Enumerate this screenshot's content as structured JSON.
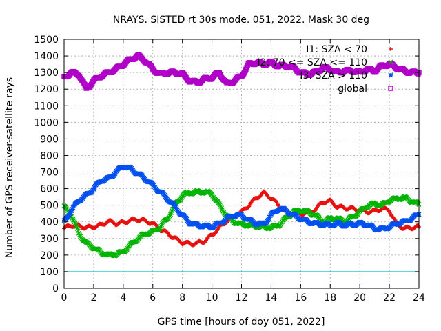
{
  "chart_data": {
    "type": "scatter",
    "title": "NRAYS. SISTED rt 30s mode. 051, 2022. Mask 30 deg",
    "xlabel": "GPS time [hours of doy 051, 2022]",
    "ylabel": "Number of GPS receiver-satellite rays",
    "xlim": [
      0,
      24
    ],
    "ylim": [
      0,
      1500
    ],
    "xticks": [
      "0",
      "2",
      "4",
      "6",
      "8",
      "10",
      "12",
      "14",
      "16",
      "18",
      "20",
      "22",
      "24"
    ],
    "yticks": [
      "0",
      "100",
      "200",
      "300",
      "400",
      "500",
      "600",
      "700",
      "800",
      "900",
      "1000",
      "1100",
      "1200",
      "1300",
      "1400",
      "1500"
    ],
    "grid": true,
    "legend_position": "top-right",
    "reference_line": {
      "y": 100,
      "color": "#00c8c8"
    },
    "series": [
      {
        "name": "I1: SZA < 70",
        "legend_label": "I1: SZA < 70",
        "color": "#e8110f",
        "marker": "plus",
        "x": [
          0,
          0.5,
          1,
          1.5,
          2,
          2.5,
          3,
          3.5,
          4,
          4.5,
          5,
          5.5,
          6,
          6.5,
          7,
          7.5,
          8,
          8.5,
          9,
          9.5,
          10,
          10.5,
          11,
          11.5,
          12,
          12.5,
          13,
          13.5,
          14,
          14.5,
          15,
          15.5,
          16,
          16.5,
          17,
          17.5,
          18,
          18.5,
          19,
          19.5,
          20,
          20.5,
          21,
          21.5,
          22,
          22.5,
          23,
          23.5,
          24
        ],
        "y": [
          360,
          380,
          375,
          365,
          370,
          380,
          405,
          390,
          395,
          410,
          415,
          405,
          390,
          355,
          330,
          300,
          275,
          268,
          270,
          285,
          320,
          365,
          405,
          435,
          460,
          500,
          545,
          575,
          545,
          500,
          460,
          450,
          450,
          455,
          475,
          520,
          525,
          490,
          485,
          480,
          470,
          460,
          465,
          480,
          470,
          385,
          360,
          365,
          370
        ]
      },
      {
        "name": "I2: 70 <= SZA <= 110",
        "legend_label": "I2: 70 <= SZA <= 110",
        "color": "#00b400",
        "marker": "cross",
        "x": [
          0,
          0.5,
          1,
          1.5,
          2,
          2.5,
          3,
          3.5,
          4,
          4.5,
          5,
          5.5,
          6,
          6.5,
          7,
          7.5,
          8,
          8.5,
          9,
          9.5,
          10,
          10.5,
          11,
          11.5,
          12,
          12.5,
          13,
          13.5,
          14,
          14.5,
          15,
          15.5,
          16,
          16.5,
          17,
          17.5,
          18,
          18.5,
          19,
          19.5,
          20,
          20.5,
          21,
          21.5,
          22,
          22.5,
          23,
          23.5,
          24
        ],
        "y": [
          490,
          440,
          330,
          270,
          245,
          215,
          200,
          205,
          220,
          260,
          300,
          330,
          340,
          370,
          420,
          500,
          560,
          575,
          580,
          580,
          570,
          500,
          440,
          400,
          385,
          380,
          375,
          370,
          365,
          380,
          420,
          460,
          470,
          460,
          440,
          400,
          420,
          420,
          400,
          430,
          460,
          495,
          510,
          500,
          530,
          540,
          545,
          525,
          505
        ]
      },
      {
        "name": "I3: SZA > 110",
        "legend_label": "I3: SZA > 110",
        "color": "#0050f0",
        "marker": "star",
        "x": [
          0,
          0.5,
          1,
          1.5,
          2,
          2.5,
          3,
          3.5,
          4,
          4.5,
          5,
          5.5,
          6,
          6.5,
          7,
          7.5,
          8,
          8.5,
          9,
          9.5,
          10,
          10.5,
          11,
          11.5,
          12,
          12.5,
          13,
          13.5,
          14,
          14.5,
          15,
          15.5,
          16,
          16.5,
          17,
          17.5,
          18,
          18.5,
          19,
          19.5,
          20,
          20.5,
          21,
          21.5,
          22,
          22.5,
          23,
          23.5,
          24
        ],
        "y": [
          400,
          470,
          530,
          560,
          600,
          650,
          660,
          700,
          735,
          720,
          690,
          660,
          620,
          580,
          540,
          490,
          440,
          395,
          380,
          375,
          370,
          390,
          420,
          440,
          440,
          410,
          390,
          385,
          440,
          480,
          470,
          440,
          420,
          400,
          390,
          385,
          380,
          390,
          380,
          385,
          390,
          385,
          360,
          355,
          370,
          390,
          400,
          420,
          445
        ]
      },
      {
        "name": "global",
        "legend_label": "global",
        "color": "#b000c8",
        "marker": "square",
        "x": [
          0,
          0.5,
          1,
          1.5,
          2,
          2.5,
          3,
          3.5,
          4,
          4.5,
          5,
          5.5,
          6,
          6.5,
          7,
          7.5,
          8,
          8.5,
          9,
          9.5,
          10,
          10.5,
          11,
          11.5,
          12,
          12.5,
          13,
          13.5,
          14,
          14.5,
          15,
          15.5,
          16,
          16.5,
          17,
          17.5,
          18,
          18.5,
          19,
          19.5,
          20,
          20.5,
          21,
          21.5,
          22,
          22.5,
          23,
          23.5,
          24
        ],
        "y": [
          1270,
          1300,
          1290,
          1200,
          1250,
          1280,
          1300,
          1320,
          1350,
          1380,
          1400,
          1370,
          1320,
          1290,
          1300,
          1300,
          1290,
          1250,
          1240,
          1260,
          1270,
          1300,
          1230,
          1250,
          1280,
          1350,
          1360,
          1350,
          1360,
          1340,
          1340,
          1330,
          1300,
          1290,
          1300,
          1330,
          1320,
          1300,
          1310,
          1310,
          1300,
          1320,
          1310,
          1340,
          1350,
          1330,
          1310,
          1300,
          1300
        ]
      }
    ]
  }
}
